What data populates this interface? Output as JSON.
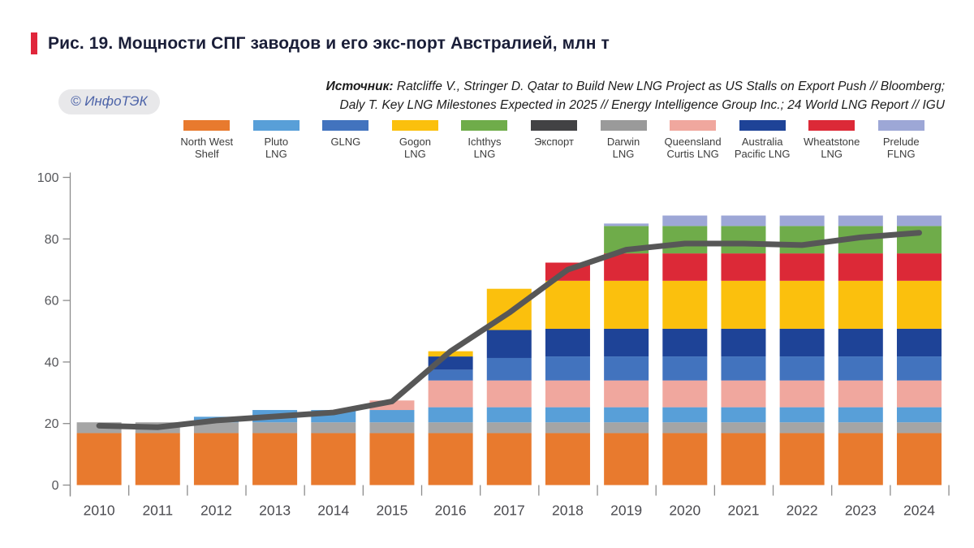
{
  "header": {
    "title": "Рис. 19. Мощности СПГ заводов и его экс-порт Австралией, млн т",
    "accent_color": "#E0263B",
    "title_color": "#1A1E38"
  },
  "logo": {
    "text": "© ИнфоТЭК",
    "text_color": "#4C63A8",
    "bg_color": "#E8E8EA"
  },
  "source": {
    "label": "Источник:",
    "line1": " Ratcliffe V., Stringer D. Qatar to Build New LNG Project as US Stalls on Export Push // Bloomberg;",
    "line2": "Daly T. Key LNG Milestones Expected in 2025 // Energy Intelligence Group Inc.; 24 World LNG Report // IGU"
  },
  "legend": {
    "items": [
      {
        "line1": "North West",
        "line2": "Shelf",
        "color": "#E87A2E"
      },
      {
        "line1": "Pluto",
        "line2": "LNG",
        "color": "#589FD8"
      },
      {
        "line1": "GLNG",
        "line2": "",
        "color": "#4273BE"
      },
      {
        "line1": "Gogon",
        "line2": "LNG",
        "color": "#FBC00D"
      },
      {
        "line1": "Ichthys",
        "line2": "LNG",
        "color": "#6FAC4A"
      },
      {
        "line1": "Экспорт",
        "line2": "",
        "color": "#424244"
      },
      {
        "line1": "Darwin",
        "line2": "LNG",
        "color": "#9A9A9A"
      },
      {
        "line1": "Queensland",
        "line2": "Curtis LNG",
        "color": "#F0A79E"
      },
      {
        "line1": "Australia",
        "line2": "Pacific LNG",
        "color": "#1E4397"
      },
      {
        "line1": "Wheatstone",
        "line2": "LNG",
        "color": "#DC2937"
      },
      {
        "line1": "Prelude",
        "line2": "FLNG",
        "color": "#9DA7D6"
      }
    ]
  },
  "chart_data": {
    "type": "bar",
    "subtype": "stacked-bars-with-line-overlay",
    "title": "Мощности СПГ заводов и его экспорт Австралией, млн т",
    "xlabel": "",
    "ylabel": "",
    "ylim": [
      0,
      100
    ],
    "yticks": [
      0,
      20,
      40,
      60,
      80,
      100
    ],
    "grid": false,
    "legend_position": "top",
    "categories": [
      "2010",
      "2011",
      "2012",
      "2013",
      "2014",
      "2015",
      "2016",
      "2017",
      "2018",
      "2019",
      "2020",
      "2021",
      "2022",
      "2023",
      "2024"
    ],
    "series": [
      {
        "name": "North West Shelf",
        "color": "#E87A2E",
        "values": [
          16.9,
          16.9,
          16.9,
          16.9,
          16.9,
          16.9,
          16.9,
          16.9,
          16.9,
          16.9,
          16.9,
          16.9,
          16.9,
          16.9,
          16.9
        ]
      },
      {
        "name": "Darwin LNG",
        "color": "#A5A5A5",
        "values": [
          3.5,
          3.5,
          3.5,
          3.5,
          3.5,
          3.5,
          3.5,
          3.5,
          3.5,
          3.5,
          3.5,
          3.5,
          3.5,
          3.5,
          3.5
        ]
      },
      {
        "name": "Pluto LNG",
        "color": "#589FD8",
        "values": [
          0,
          0,
          1.8,
          4.0,
          4.0,
          4.0,
          4.9,
          4.9,
          4.9,
          4.9,
          4.9,
          4.9,
          4.9,
          4.9,
          4.9
        ]
      },
      {
        "name": "Queensland Curtis LNG",
        "color": "#F0A79E",
        "values": [
          0,
          0,
          0,
          0,
          0,
          3.1,
          8.7,
          8.7,
          8.7,
          8.7,
          8.7,
          8.7,
          8.7,
          8.7,
          8.7
        ]
      },
      {
        "name": "GLNG",
        "color": "#4273BE",
        "values": [
          0,
          0,
          0,
          0,
          0,
          0,
          3.5,
          7.3,
          7.8,
          7.8,
          7.8,
          7.8,
          7.8,
          7.8,
          7.8
        ]
      },
      {
        "name": "Australia Pacific LNG",
        "color": "#1E4397",
        "values": [
          0,
          0,
          0,
          0,
          0,
          0,
          4.3,
          9.1,
          9.0,
          9.0,
          9.0,
          9.0,
          9.0,
          9.0,
          9.0
        ]
      },
      {
        "name": "Gogon LNG",
        "color": "#FBC00D",
        "values": [
          0,
          0,
          0,
          0,
          0,
          0,
          1.7,
          13.4,
          15.6,
          15.6,
          15.6,
          15.6,
          15.6,
          15.6,
          15.6
        ]
      },
      {
        "name": "Wheatstone LNG",
        "color": "#DC2937",
        "values": [
          0,
          0,
          0,
          0,
          0,
          0,
          0,
          0,
          5.9,
          8.9,
          8.9,
          8.9,
          8.9,
          8.9,
          8.9
        ]
      },
      {
        "name": "Ichthys LNG",
        "color": "#6FAC4A",
        "values": [
          0,
          0,
          0,
          0,
          0,
          0,
          0,
          0,
          0,
          8.9,
          8.9,
          8.9,
          8.9,
          8.9,
          8.9
        ]
      },
      {
        "name": "Prelude FLNG",
        "color": "#9DA7D6",
        "values": [
          0,
          0,
          0,
          0,
          0,
          0,
          0,
          0,
          0,
          0.8,
          3.4,
          3.4,
          3.4,
          3.4,
          3.4
        ]
      }
    ],
    "line_series": {
      "name": "Экспорт",
      "color": "#575757",
      "values": [
        19.3,
        18.8,
        21.0,
        22.3,
        23.6,
        27.2,
        43.5,
        56.0,
        70.0,
        76.5,
        78.5,
        78.5,
        78.0,
        80.5,
        82.0
      ]
    },
    "axis_color": "#8C8C8C",
    "tick_label_color": "#55565A"
  }
}
